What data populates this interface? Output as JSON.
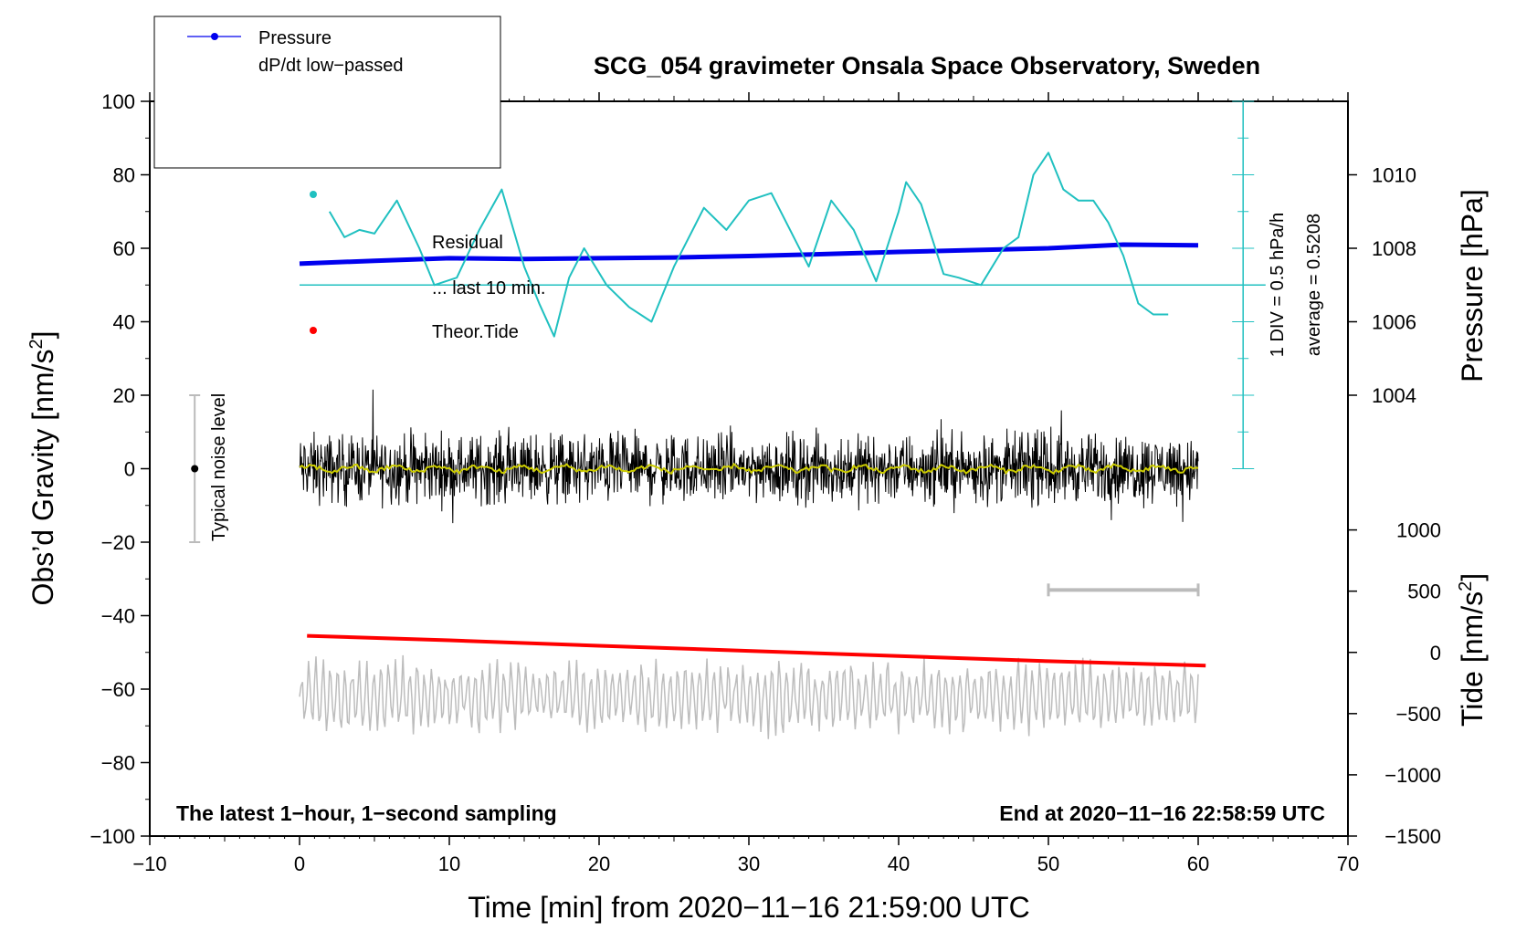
{
  "chart_data": {
    "type": "line",
    "title": "SCG_054 gravimeter Onsala Space Observatory, Sweden",
    "xlabel": "Time [min] from 2020−11−16 21:59:00 UTC",
    "ylabel_left": "Obs’d Gravity [nm/s",
    "ylabel_left_exp": "2",
    "ylabel_left_close": "]",
    "ylabel_right_top": "Pressure [hPa]",
    "ylabel_right_bottom": "Tide [nm/s",
    "ylabel_right_bottom_exp": "2",
    "ylabel_right_bottom_close": "]",
    "xlim": [
      -10,
      70
    ],
    "ylim_left": [
      -100,
      100
    ],
    "x_ticks": [
      {
        "v": -10,
        "label": "−10"
      },
      {
        "v": 0,
        "label": "0"
      },
      {
        "v": 10,
        "label": "10"
      },
      {
        "v": 20,
        "label": "20"
      },
      {
        "v": 30,
        "label": "30"
      },
      {
        "v": 40,
        "label": "40"
      },
      {
        "v": 50,
        "label": "50"
      },
      {
        "v": 60,
        "label": "60"
      },
      {
        "v": 70,
        "label": "70"
      }
    ],
    "y_left_ticks": [
      {
        "v": 100,
        "label": "100"
      },
      {
        "v": 80,
        "label": "80"
      },
      {
        "v": 60,
        "label": "60"
      },
      {
        "v": 40,
        "label": "40"
      },
      {
        "v": 20,
        "label": "20"
      },
      {
        "v": 0,
        "label": "0"
      },
      {
        "v": -20,
        "label": "−20"
      },
      {
        "v": -40,
        "label": "−40"
      },
      {
        "v": -60,
        "label": "−60"
      },
      {
        "v": -80,
        "label": "−80"
      },
      {
        "v": -100,
        "label": "−100"
      }
    ],
    "y_pressure_ticks": [
      {
        "v": 1010,
        "label": "1010"
      },
      {
        "v": 1008,
        "label": "1008"
      },
      {
        "v": 1006,
        "label": "1006"
      },
      {
        "v": 1004,
        "label": "1004"
      }
    ],
    "pressure_axis_map": {
      "p0": 1008,
      "gravity_at_p0": 60,
      "gravity_per_hpa": 10
    },
    "y_tide_ticks": [
      {
        "v": 1000,
        "label": "1000"
      },
      {
        "v": 500,
        "label": "500"
      },
      {
        "v": 0,
        "label": "0"
      },
      {
        "v": -500,
        "label": "−500"
      },
      {
        "v": -1000,
        "label": "−1000"
      },
      {
        "v": -1500,
        "label": "−1500"
      }
    ],
    "tide_axis_map": {
      "t0": 0,
      "gravity_at_t0": -50,
      "gravity_per_nms2": 0.03333
    },
    "legend": {
      "pressure": "Pressure",
      "dpdt": "dP/dt low−passed",
      "residual": "Residual",
      "last10": "... last 10 min.",
      "tide": "Theor.Tide"
    },
    "annotations": {
      "noise": "Typical noise level",
      "div": "1 DIV = 0.5 hPa/h",
      "average": "average = 0.5208",
      "sampling": "The latest 1−hour, 1−second sampling",
      "end": "End at 2020−11−16 22:58:59 UTC"
    },
    "noise_level": {
      "x": -7,
      "center": 0,
      "half_range": 20
    },
    "dpdt_scale": {
      "x": 63,
      "zero": 0,
      "top": 100,
      "baseline": 50
    },
    "scale_bar": {
      "x_start": 50,
      "x_end": 60,
      "y": -33
    },
    "series": [
      {
        "name": "Pressure",
        "color": "#0000ee",
        "x": [
          0,
          5,
          10,
          15,
          20,
          25,
          30,
          35,
          40,
          45,
          50,
          55,
          60
        ],
        "y": [
          55.8,
          56.6,
          57.3,
          57.1,
          57.3,
          57.5,
          57.9,
          58.4,
          59.0,
          59.5,
          60.0,
          61.0,
          60.8
        ]
      },
      {
        "name": "dP/dt low−passed",
        "color": "#20c0c0",
        "x": [
          2,
          3,
          4,
          5,
          6.5,
          8,
          9,
          10.5,
          12,
          13.5,
          15,
          16,
          17,
          18,
          19,
          20.5,
          22,
          23.5,
          25,
          27,
          28.5,
          30,
          31.5,
          33,
          34,
          35.5,
          37,
          38.5,
          40,
          40.5,
          41.5,
          43,
          44,
          45.5,
          47,
          48,
          49,
          50,
          51,
          52,
          53,
          54,
          55,
          56,
          57,
          58
        ],
        "y": [
          70,
          63,
          65,
          64,
          73,
          60,
          50,
          52,
          65,
          76,
          55,
          45,
          36,
          52,
          60,
          50,
          44,
          40,
          55,
          71,
          65,
          73,
          75,
          63,
          55,
          73,
          65,
          51,
          70,
          78,
          72,
          53,
          52,
          50,
          60,
          63,
          80,
          86,
          76,
          73,
          73,
          67,
          58,
          45,
          42,
          42
        ]
      },
      {
        "name": "Theor.Tide",
        "color": "#ff0000",
        "x": [
          0.5,
          10,
          20,
          30,
          40,
          50,
          60.5
        ],
        "y": [
          -45.5,
          -46.7,
          -48.2,
          -49.6,
          -51.0,
          -52.4,
          -53.6
        ]
      }
    ],
    "noise_series": [
      {
        "name": "Residual",
        "color": "#000000",
        "x_start": 0,
        "x_end": 60,
        "center": 0,
        "amp": 9
      },
      {
        "name": "... last 10 min.",
        "color": "#cccc00",
        "x_start": 0,
        "x_end": 60,
        "center": 0,
        "amp": 1.2
      },
      {
        "name": "lower trace",
        "color": "#bdbdbd",
        "x_start": 0,
        "x_end": 60,
        "center": -62,
        "amp": 8
      }
    ]
  },
  "colors": {
    "pressure": "#0000ee",
    "dpdt": "#20c0c0",
    "tide": "#ff0000",
    "residual": "#000000",
    "smoothed": "#cccc00",
    "grey": "#bdbdbd"
  }
}
